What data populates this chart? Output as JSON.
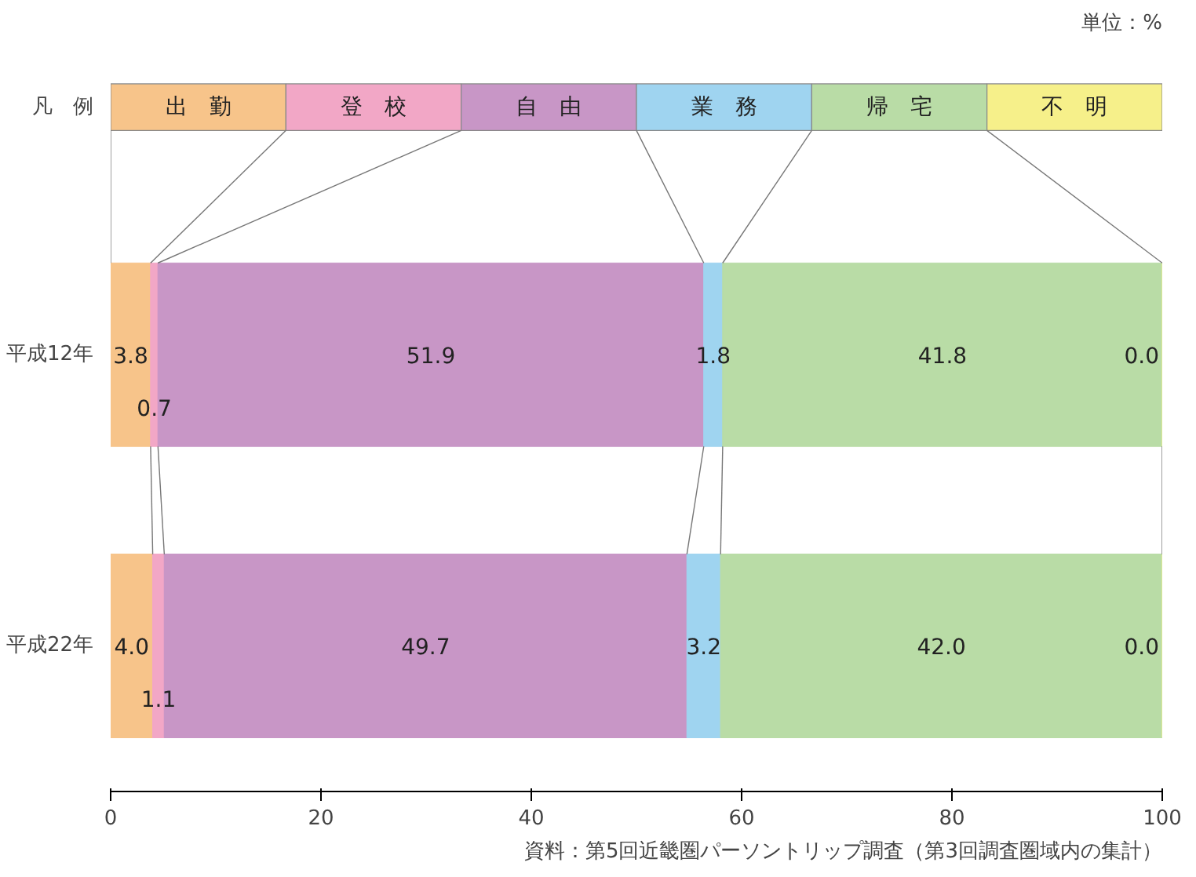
{
  "chart_data": {
    "type": "bar",
    "orientation": "horizontal",
    "stacked": true,
    "categories": [
      "平成12年",
      "平成22年"
    ],
    "series": [
      {
        "name": "出　勤",
        "color": "#f7c48a",
        "values": [
          3.8,
          4.0
        ],
        "value_labels": [
          "3.8",
          "4.0"
        ]
      },
      {
        "name": "登　校",
        "color": "#f2a7c6",
        "values": [
          0.7,
          1.1
        ],
        "value_labels": [
          "0.7",
          "1.1"
        ]
      },
      {
        "name": "自　由",
        "color": "#c896c6",
        "values": [
          51.9,
          49.7
        ],
        "value_labels": [
          "51.9",
          "49.7"
        ]
      },
      {
        "name": "業　務",
        "color": "#9fd4f0",
        "values": [
          1.8,
          3.2
        ],
        "value_labels": [
          "1.8",
          "3.2"
        ]
      },
      {
        "name": "帰　宅",
        "color": "#b9dca6",
        "values": [
          41.8,
          42.0
        ],
        "value_labels": [
          "41.8",
          "42.0"
        ]
      },
      {
        "name": "不　明",
        "color": "#f6f08a",
        "values": [
          0.0,
          0.0
        ],
        "value_labels": [
          "0.0",
          "0.0"
        ]
      }
    ],
    "xlim": [
      0,
      100
    ],
    "xticks": [
      0,
      20,
      40,
      60,
      80,
      100
    ],
    "grid": false,
    "legend": "top",
    "legend_title": "凡　例",
    "annotations": [
      "単位：%",
      "資料：第5回近畿圏パーソントリップ調査（第3回調査圏域内の集計）"
    ]
  }
}
